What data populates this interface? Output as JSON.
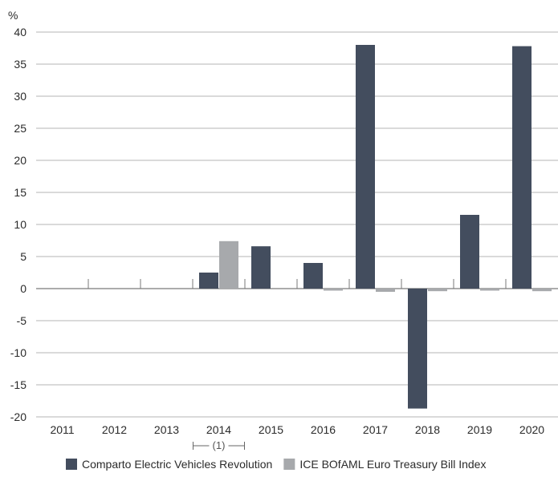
{
  "chart_data": {
    "type": "bar",
    "title": "",
    "ylabel": "%",
    "xlabel": "",
    "ylim": [
      -20,
      40
    ],
    "yticks": [
      "40",
      "35",
      "30",
      "25",
      "20",
      "15",
      "10",
      "5",
      "0",
      "-5",
      "-10",
      "-15",
      "-20"
    ],
    "categories": [
      "2011",
      "2012",
      "2013",
      "2014",
      "2015",
      "2016",
      "2017",
      "2018",
      "2019",
      "2020"
    ],
    "series": [
      {
        "name": "Comparto Electric Vehicles Revolution",
        "color": "#434d5e",
        "values": [
          null,
          null,
          null,
          2.5,
          6.6,
          4.0,
          38.0,
          -18.7,
          11.5,
          37.8
        ]
      },
      {
        "name": "ICE BOfAML Euro Treasury Bill Index",
        "color": "#a7a9ac",
        "values": [
          null,
          null,
          null,
          7.4,
          null,
          -0.2,
          -0.5,
          -0.4,
          -0.3,
          -0.4
        ]
      }
    ],
    "grid": true,
    "legend_position": "bottom",
    "annotations": [
      {
        "text": "(1)",
        "category_index": 3
      }
    ]
  }
}
